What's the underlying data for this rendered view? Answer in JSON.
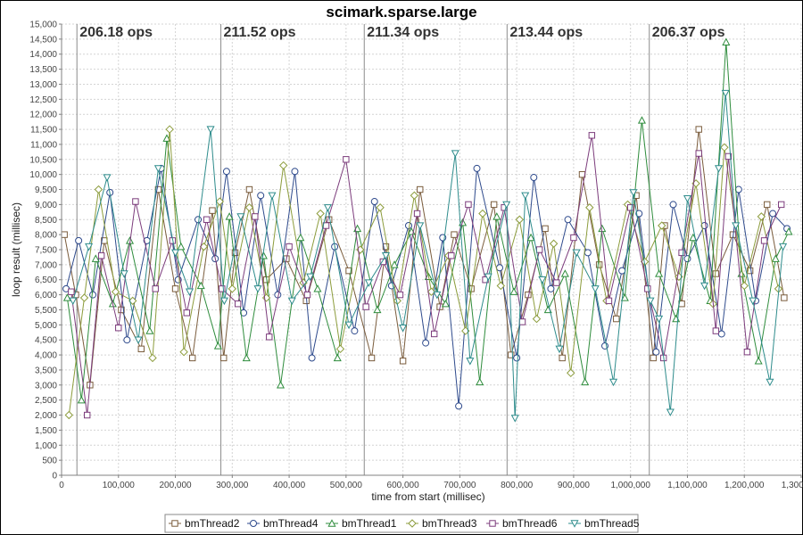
{
  "chart_data": {
    "type": "line",
    "title": "scimark.sparse.large",
    "xlabel": "time from start (millisec)",
    "ylabel": "loop result (millisec)",
    "xlim": [
      0,
      1300000
    ],
    "ylim": [
      0,
      15000
    ],
    "x_ticks": [
      0,
      100000,
      200000,
      300000,
      400000,
      500000,
      600000,
      700000,
      800000,
      900000,
      1000000,
      1100000,
      1200000,
      1300000
    ],
    "x_tick_labels": [
      "0",
      "100,000",
      "200,000",
      "300,000",
      "400,000",
      "500,000",
      "600,000",
      "700,000",
      "800,000",
      "900,000",
      "1,000,000",
      "1,100,000",
      "1,200,000",
      "1,300,000"
    ],
    "y_ticks": [
      0,
      500,
      1000,
      1500,
      2000,
      2500,
      3000,
      3500,
      4000,
      4500,
      5000,
      5500,
      6000,
      6500,
      7000,
      7500,
      8000,
      8500,
      9000,
      9500,
      10000,
      10500,
      11000,
      11500,
      12000,
      12500,
      13000,
      13500,
      14000,
      14500,
      15000
    ],
    "y_tick_labels": [
      "0",
      "500",
      "1,000",
      "1,500",
      "2,000",
      "2,500",
      "3,000",
      "3,500",
      "4,000",
      "4,500",
      "5,000",
      "5,500",
      "6,000",
      "6,500",
      "7,000",
      "7,500",
      "8,000",
      "8,500",
      "9,000",
      "9,500",
      "10,000",
      "10,500",
      "11,000",
      "11,500",
      "12,000",
      "12,500",
      "13,000",
      "13,500",
      "14,000",
      "14,500",
      "15,000"
    ],
    "grid": true,
    "legend_position": "bottom",
    "phase_markers": [
      {
        "x": 27000,
        "label": "206.18 ops"
      },
      {
        "x": 280000,
        "label": "211.52 ops"
      },
      {
        "x": 532000,
        "label": "211.34 ops"
      },
      {
        "x": 783000,
        "label": "213.44 ops"
      },
      {
        "x": 1033000,
        "label": "206.37 ops"
      }
    ],
    "series": [
      {
        "name": "bmThread2",
        "color": "#7a5c3c",
        "marker": "square",
        "x": [
          5000,
          25000,
          50000,
          75000,
          105000,
          140000,
          170000,
          200000,
          230000,
          265000,
          285000,
          305000,
          330000,
          360000,
          395000,
          430000,
          470000,
          505000,
          545000,
          570000,
          600000,
          630000,
          665000,
          690000,
          720000,
          760000,
          790000,
          820000,
          850000,
          880000,
          915000,
          945000,
          975000,
          1010000,
          1040000,
          1060000,
          1090000,
          1120000,
          1150000,
          1180000,
          1210000,
          1240000,
          1270000
        ],
        "y": [
          8000,
          6000,
          3000,
          7800,
          5500,
          4200,
          9500,
          6200,
          3900,
          8800,
          3900,
          7400,
          9500,
          6500,
          7200,
          5800,
          8500,
          6800,
          3900,
          7600,
          3800,
          9500,
          5600,
          8000,
          6200,
          9000,
          4000,
          6000,
          8200,
          3900,
          10000,
          7000,
          5200,
          9300,
          3900,
          8300,
          5700,
          11500,
          6700,
          8000,
          6800,
          9000,
          5900
        ]
      },
      {
        "name": "bmThread4",
        "color": "#2e4a8c",
        "marker": "circle",
        "x": [
          8000,
          30000,
          55000,
          85000,
          115000,
          150000,
          175000,
          205000,
          240000,
          270000,
          290000,
          320000,
          350000,
          380000,
          410000,
          440000,
          480000,
          515000,
          550000,
          580000,
          610000,
          640000,
          670000,
          698000,
          730000,
          770000,
          800000,
          830000,
          860000,
          890000,
          925000,
          955000,
          985000,
          1015000,
          1045000,
          1075000,
          1100000,
          1130000,
          1160000,
          1190000,
          1220000,
          1250000,
          1275000
        ],
        "y": [
          6200,
          7800,
          6000,
          9400,
          4500,
          7800,
          10200,
          6500,
          8500,
          7200,
          10100,
          5400,
          9300,
          6000,
          10100,
          3900,
          7600,
          4800,
          9100,
          6300,
          8300,
          4400,
          7900,
          2300,
          10200,
          6900,
          3900,
          9900,
          6200,
          8500,
          7400,
          4300,
          6800,
          8700,
          4100,
          9000,
          7200,
          8300,
          4700,
          9500,
          5800,
          8700,
          8200
        ]
      },
      {
        "name": "bmThread1",
        "color": "#2e8c3c",
        "marker": "triangle",
        "x": [
          10000,
          35000,
          60000,
          90000,
          120000,
          155000,
          185000,
          210000,
          245000,
          275000,
          295000,
          325000,
          355000,
          385000,
          420000,
          450000,
          485000,
          520000,
          555000,
          585000,
          615000,
          645000,
          675000,
          705000,
          735000,
          765000,
          795000,
          825000,
          855000,
          885000,
          920000,
          950000,
          990000,
          1020000,
          1050000,
          1080000,
          1110000,
          1140000,
          1168000,
          1195000,
          1225000,
          1255000,
          1278000
        ],
        "y": [
          5900,
          2500,
          7200,
          5700,
          7800,
          4800,
          11200,
          7600,
          6300,
          4300,
          8600,
          3900,
          7300,
          3000,
          7900,
          6200,
          3900,
          8200,
          5500,
          7000,
          8100,
          6600,
          5700,
          8400,
          3100,
          8600,
          6100,
          7900,
          5500,
          6700,
          3100,
          8200,
          5900,
          11800,
          6700,
          5200,
          7900,
          5800,
          14400,
          6700,
          3800,
          7200,
          8100
        ]
      },
      {
        "name": "bmThread3",
        "color": "#8c9c3c",
        "marker": "diamond",
        "x": [
          13000,
          40000,
          65000,
          95000,
          125000,
          160000,
          190000,
          215000,
          250000,
          278000,
          300000,
          330000,
          360000,
          390000,
          425000,
          455000,
          490000,
          525000,
          560000,
          590000,
          620000,
          650000,
          680000,
          710000,
          740000,
          772000,
          805000,
          835000,
          865000,
          895000,
          928000,
          958000,
          995000,
          1025000,
          1055000,
          1085000,
          1115000,
          1145000,
          1165000,
          1200000,
          1230000,
          1260000
        ],
        "y": [
          2000,
          5900,
          9500,
          6100,
          5800,
          3900,
          11500,
          4100,
          7600,
          9100,
          6200,
          8900,
          5900,
          10300,
          6400,
          8700,
          4200,
          7500,
          8900,
          5800,
          9300,
          6100,
          7300,
          4800,
          8700,
          6300,
          8500,
          5200,
          7700,
          3400,
          8900,
          5800,
          9000,
          7100,
          8300,
          6600,
          9700,
          5700,
          10900,
          6300,
          8600,
          6200
        ]
      },
      {
        "name": "bmThread6",
        "color": "#7c3c7c",
        "marker": "square",
        "x": [
          17000,
          45000,
          70000,
          100000,
          130000,
          165000,
          195000,
          220000,
          255000,
          282000,
          310000,
          340000,
          365000,
          400000,
          432000,
          465000,
          500000,
          535000,
          565000,
          595000,
          625000,
          655000,
          685000,
          715000,
          745000,
          778000,
          810000,
          840000,
          870000,
          900000,
          932000,
          962000,
          1000000,
          1030000,
          1058000,
          1090000,
          1120000,
          1150000,
          1172000,
          1205000,
          1235000,
          1265000
        ],
        "y": [
          6100,
          2000,
          7300,
          4900,
          9100,
          6200,
          7800,
          5400,
          8500,
          6200,
          5700,
          8600,
          4600,
          7600,
          6000,
          8300,
          10500,
          5600,
          7100,
          6000,
          8700,
          4700,
          7300,
          9000,
          6500,
          8900,
          5100,
          7500,
          6400,
          7900,
          11300,
          5800,
          8900,
          6200,
          3900,
          7400,
          10700,
          4800,
          10600,
          4100,
          7800,
          9000
        ]
      },
      {
        "name": "bmThread5",
        "color": "#2e8c8c",
        "marker": "triangle-down",
        "x": [
          20000,
          48000,
          80000,
          110000,
          135000,
          170000,
          200000,
          225000,
          262000,
          286000,
          315000,
          345000,
          370000,
          405000,
          437000,
          468000,
          505000,
          540000,
          570000,
          600000,
          630000,
          660000,
          692000,
          718000,
          750000,
          782000,
          797000,
          815000,
          845000,
          875000,
          905000,
          938000,
          970000,
          1005000,
          1035000,
          1050000,
          1070000,
          1100000,
          1130000,
          1155000,
          1167000,
          1185000,
          1215000,
          1245000,
          1268000
        ],
        "y": [
          5800,
          7600,
          9900,
          6700,
          4500,
          10200,
          7400,
          6100,
          11500,
          5800,
          8600,
          6200,
          9300,
          5800,
          6600,
          8900,
          5000,
          6400,
          7300,
          4900,
          8300,
          6000,
          10700,
          3800,
          6600,
          9000,
          1900,
          9300,
          6500,
          4200,
          7400,
          6200,
          3100,
          9400,
          5800,
          5200,
          2100,
          9200,
          6300,
          10200,
          12700,
          8300,
          5800,
          3100,
          7600
        ]
      }
    ],
    "legend": [
      {
        "name": "bmThread2",
        "marker": "square",
        "color": "#7a5c3c"
      },
      {
        "name": "bmThread4",
        "marker": "circle",
        "color": "#2e4a8c"
      },
      {
        "name": "bmThread1",
        "marker": "triangle",
        "color": "#2e8c3c"
      },
      {
        "name": "bmThread3",
        "marker": "diamond",
        "color": "#8c9c3c"
      },
      {
        "name": "bmThread6",
        "marker": "square",
        "color": "#7c3c7c"
      },
      {
        "name": "bmThread5",
        "marker": "triangle-down",
        "color": "#2e8c8c"
      }
    ]
  }
}
